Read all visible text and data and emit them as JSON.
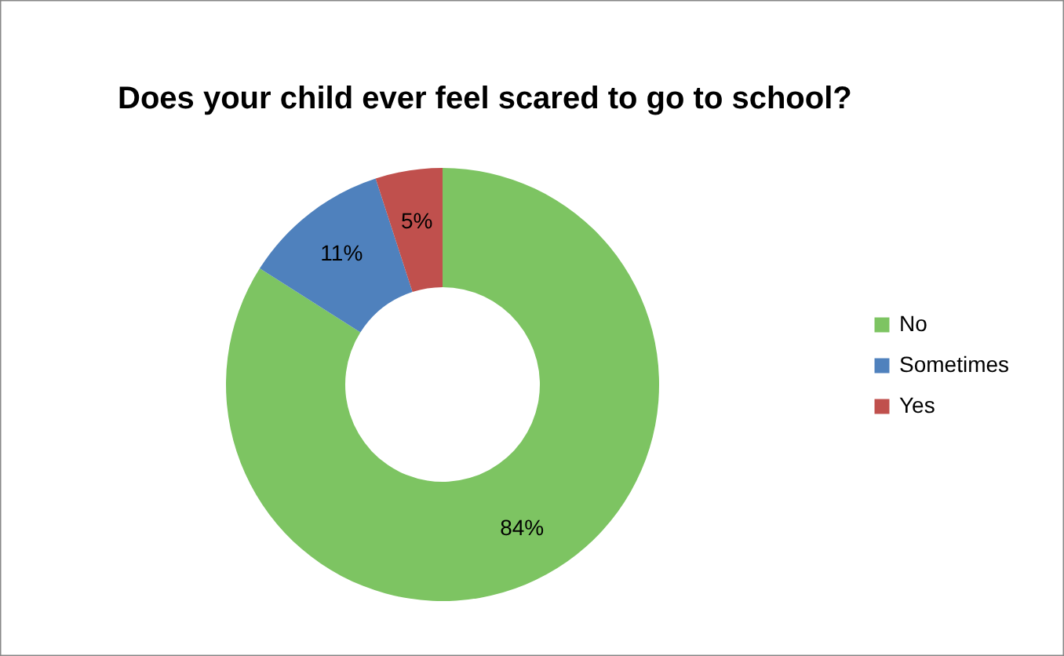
{
  "chart_data": {
    "type": "donut",
    "title": "Does your child ever feel scared to go to school?",
    "categories": [
      "No",
      "Sometimes",
      "Yes"
    ],
    "values": [
      84,
      11,
      5
    ],
    "colors": [
      "#7dc462",
      "#4f81bd",
      "#c0504d"
    ],
    "value_labels": [
      "84%",
      "11%",
      "5%"
    ],
    "legend": "right"
  }
}
